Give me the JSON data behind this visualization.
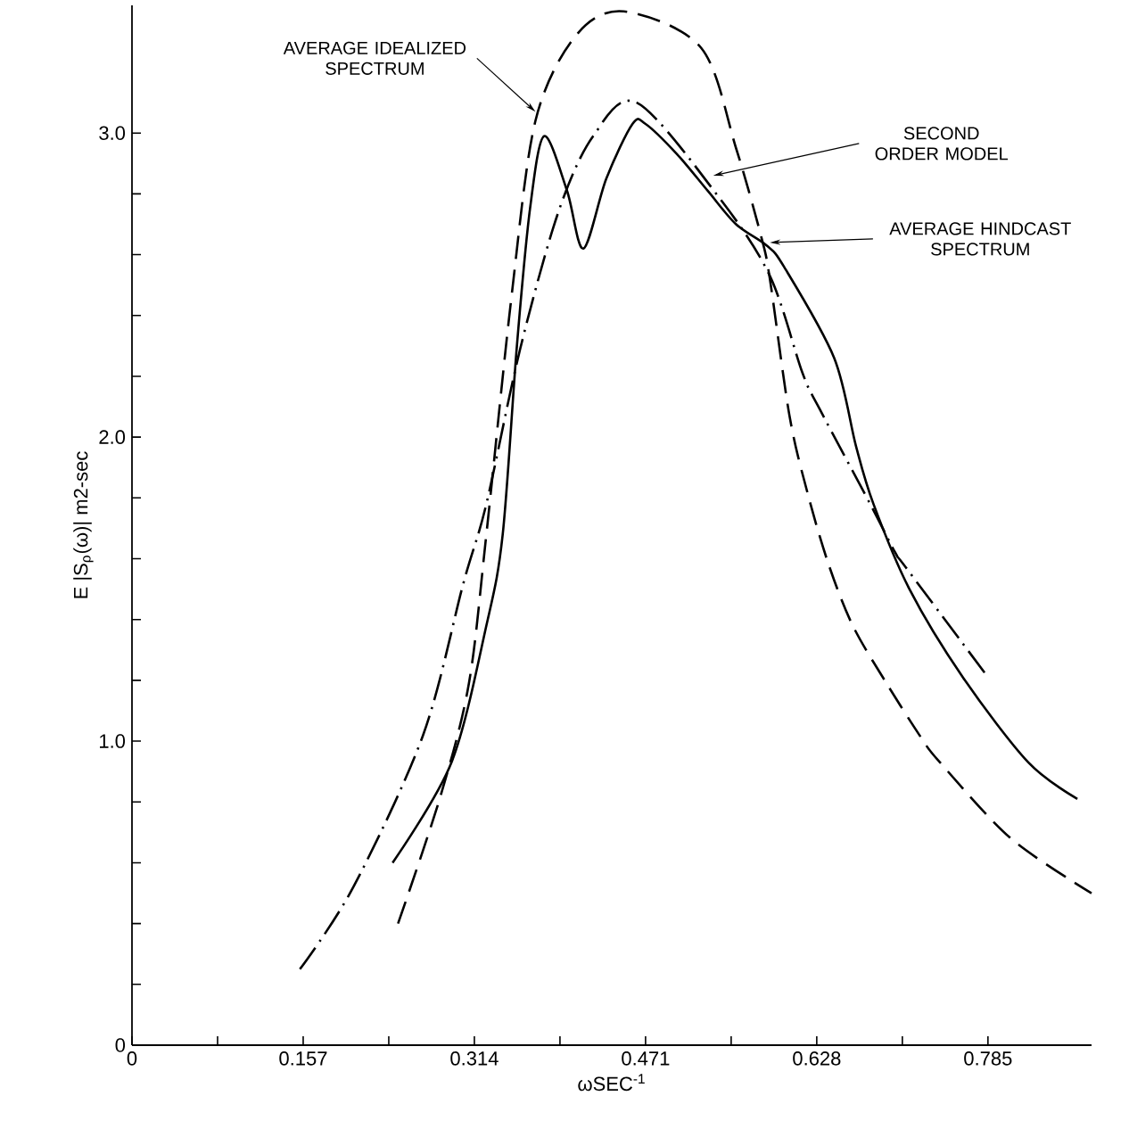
{
  "chart_data": {
    "type": "line",
    "xlabel": "ωSEC$^{-1}$",
    "ylabel": "E |S$_{ρ}$(ω)| m2-sec",
    "xlim": [
      0,
      0.88
    ],
    "ylim": [
      0,
      3.42
    ],
    "xticks": [
      0,
      {
        "value": 0.0785,
        "label": null
      },
      0.157,
      {
        "value": 0.2355,
        "label": null
      },
      0.314,
      {
        "value": 0.3925,
        "label": null
      },
      0.471,
      {
        "value": 0.5495,
        "label": null
      },
      0.628,
      {
        "value": 0.7065,
        "label": null
      },
      0.785
    ],
    "yticks": [
      0,
      {
        "value": 0.2,
        "label": null
      },
      {
        "value": 0.4,
        "label": null
      },
      {
        "value": 0.6,
        "label": null
      },
      {
        "value": 0.8,
        "label": null
      },
      {
        "value": 1,
        "label": "1.0"
      },
      {
        "value": 1.2,
        "label": null
      },
      {
        "value": 1.4,
        "label": null
      },
      {
        "value": 1.6,
        "label": null
      },
      {
        "value": 1.8,
        "label": null
      },
      {
        "value": 2,
        "label": "2.0"
      },
      {
        "value": 2.2,
        "label": null
      },
      {
        "value": 2.4,
        "label": null
      },
      {
        "value": 2.6,
        "label": null
      },
      {
        "value": 2.8,
        "label": null
      },
      {
        "value": 3,
        "label": "3.0"
      }
    ],
    "marker": "none",
    "series": [
      {
        "color": "#000000",
        "line_style": "dashed",
        "x": [
          0.244,
          0.283,
          0.309,
          0.325,
          0.348,
          0.37,
          0.407,
          0.451,
          0.522,
          0.554,
          0.577,
          0.585,
          0.603,
          0.62,
          0.639,
          0.661,
          0.692,
          0.724,
          0.741,
          0.806,
          0.88
        ],
        "values": [
          0.4,
          0.82,
          1.19,
          1.68,
          2.46,
          3.04,
          3.32,
          3.4,
          3.28,
          2.95,
          2.66,
          2.52,
          2.07,
          1.81,
          1.58,
          1.38,
          1.19,
          1.01,
          0.93,
          0.68,
          0.5
        ]
      },
      {
        "color": "#000000",
        "line_style": "dashdot",
        "x": [
          0.154,
          0.203,
          0.267,
          0.304,
          0.325,
          0.356,
          0.391,
          0.423,
          0.463,
          0.538,
          0.585,
          0.615,
          0.631,
          0.677,
          0.7,
          0.71,
          0.783
        ],
        "values": [
          0.25,
          0.52,
          1.02,
          1.52,
          1.78,
          2.29,
          2.74,
          2.99,
          3.1,
          2.79,
          2.53,
          2.21,
          2.09,
          1.78,
          1.62,
          1.57,
          1.22
        ]
      },
      {
        "color": "#000000",
        "line_style": "solid",
        "x": [
          0.239,
          0.293,
          0.325,
          0.34,
          0.353,
          0.365,
          0.378,
          0.399,
          0.414,
          0.435,
          0.459,
          0.471,
          0.5,
          0.528,
          0.554,
          0.582,
          0.598,
          0.644,
          0.664,
          0.68,
          0.713,
          0.762,
          0.822,
          0.867
        ],
        "values": [
          0.6,
          0.93,
          1.38,
          1.68,
          2.3,
          2.75,
          2.99,
          2.81,
          2.62,
          2.85,
          3.03,
          3.03,
          2.93,
          2.81,
          2.7,
          2.63,
          2.56,
          2.26,
          1.97,
          1.78,
          1.5,
          1.21,
          0.93,
          0.81
        ]
      }
    ],
    "annotations": [
      {
        "text": "AVERAGE IDEALIZED SPECTRUM",
        "x": 0.37,
        "y": 3.07
      },
      {
        "text": "SECOND ORDER MODEL",
        "x": 0.533,
        "y": 2.86
      },
      {
        "text": "AVERAGE HINDCAST SPECTRUM",
        "x": 0.585,
        "y": 2.64
      }
    ]
  }
}
